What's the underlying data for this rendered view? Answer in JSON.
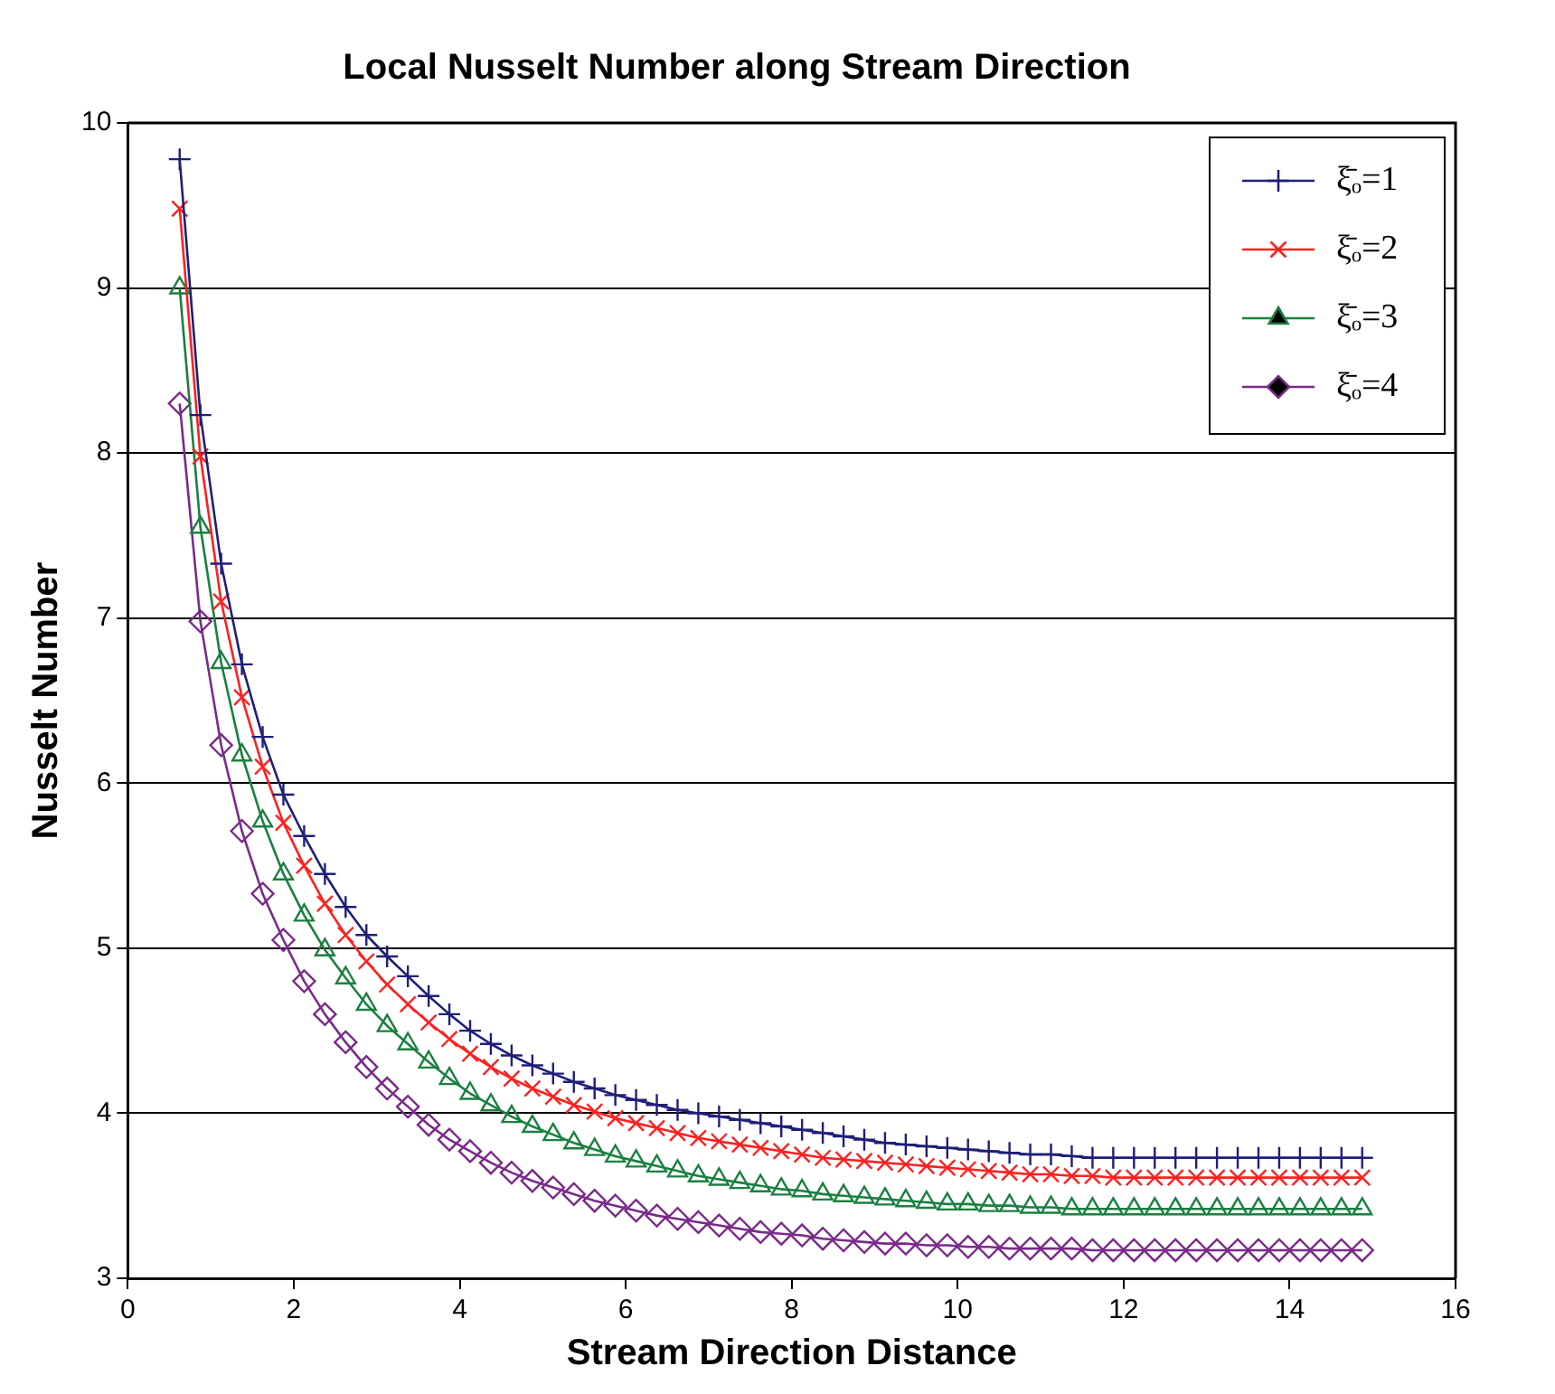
{
  "chart_data": {
    "type": "line",
    "title": "Local Nusselt Number along Stream Direction",
    "xlabel": "Stream Direction Distance",
    "ylabel": "Nusselt Number",
    "x": [
      0.625,
      0.875,
      1.125,
      1.375,
      1.625,
      1.875,
      2.125,
      2.375,
      2.625,
      2.875,
      3.125,
      3.375,
      3.625,
      3.875,
      4.125,
      4.375,
      4.625,
      4.875,
      5.125,
      5.375,
      5.625,
      5.875,
      6.125,
      6.375,
      6.625,
      6.875,
      7.125,
      7.375,
      7.625,
      7.875,
      8.125,
      8.375,
      8.625,
      8.875,
      9.125,
      9.375,
      9.625,
      9.875,
      10.125,
      10.375,
      10.625,
      10.875,
      11.125,
      11.375,
      11.625,
      11.875,
      12.125,
      12.375,
      12.625,
      12.875,
      13.125,
      13.375,
      13.625,
      13.875,
      14.125,
      14.375,
      14.625,
      14.875
    ],
    "series": [
      {
        "name": "ξ̄ₒ=1",
        "color": "#1f1f7a",
        "marker": "plus",
        "values": [
          9.78,
          8.23,
          7.33,
          6.72,
          6.28,
          5.93,
          5.68,
          5.45,
          5.25,
          5.08,
          4.95,
          4.83,
          4.71,
          4.6,
          4.5,
          4.42,
          4.35,
          4.29,
          4.24,
          4.19,
          4.15,
          4.11,
          4.08,
          4.05,
          4.02,
          4.0,
          3.98,
          3.96,
          3.94,
          3.92,
          3.9,
          3.88,
          3.86,
          3.84,
          3.82,
          3.81,
          3.8,
          3.79,
          3.78,
          3.77,
          3.76,
          3.75,
          3.75,
          3.74,
          3.73,
          3.73,
          3.73,
          3.73,
          3.73,
          3.73,
          3.73,
          3.73,
          3.73,
          3.73,
          3.73,
          3.73,
          3.73,
          3.73
        ]
      },
      {
        "name": "ξ̄ₒ=2",
        "color": "#ff2020",
        "marker": "cross",
        "values": [
          9.48,
          7.98,
          7.1,
          6.52,
          6.1,
          5.76,
          5.5,
          5.27,
          5.08,
          4.92,
          4.78,
          4.66,
          4.55,
          4.45,
          4.36,
          4.28,
          4.21,
          4.15,
          4.1,
          4.05,
          4.01,
          3.97,
          3.94,
          3.91,
          3.88,
          3.85,
          3.83,
          3.81,
          3.79,
          3.77,
          3.75,
          3.73,
          3.72,
          3.71,
          3.7,
          3.69,
          3.68,
          3.67,
          3.66,
          3.65,
          3.64,
          3.63,
          3.63,
          3.62,
          3.62,
          3.61,
          3.61,
          3.61,
          3.61,
          3.61,
          3.61,
          3.61,
          3.61,
          3.61,
          3.61,
          3.61,
          3.61,
          3.61
        ]
      },
      {
        "name": "ξ̄ₒ=3",
        "color": "#1a8040",
        "marker": "triangle",
        "values": [
          9.0,
          7.55,
          6.73,
          6.17,
          5.77,
          5.45,
          5.2,
          4.99,
          4.82,
          4.66,
          4.53,
          4.42,
          4.31,
          4.21,
          4.12,
          4.05,
          3.98,
          3.92,
          3.87,
          3.82,
          3.78,
          3.74,
          3.71,
          3.68,
          3.65,
          3.62,
          3.6,
          3.58,
          3.56,
          3.54,
          3.53,
          3.51,
          3.5,
          3.49,
          3.48,
          3.47,
          3.46,
          3.45,
          3.45,
          3.44,
          3.44,
          3.43,
          3.43,
          3.42,
          3.42,
          3.42,
          3.42,
          3.42,
          3.42,
          3.42,
          3.42,
          3.42,
          3.42,
          3.42,
          3.42,
          3.42,
          3.42,
          3.42
        ]
      },
      {
        "name": "ξ̄ₒ=4",
        "color": "#7a2a8a",
        "marker": "diamond",
        "values": [
          8.3,
          6.98,
          6.23,
          5.71,
          5.33,
          5.05,
          4.8,
          4.6,
          4.43,
          4.28,
          4.15,
          4.04,
          3.93,
          3.84,
          3.77,
          3.7,
          3.64,
          3.59,
          3.55,
          3.51,
          3.47,
          3.44,
          3.41,
          3.38,
          3.36,
          3.34,
          3.32,
          3.3,
          3.28,
          3.27,
          3.26,
          3.24,
          3.23,
          3.22,
          3.21,
          3.21,
          3.2,
          3.2,
          3.19,
          3.19,
          3.18,
          3.18,
          3.18,
          3.18,
          3.17,
          3.17,
          3.17,
          3.17,
          3.17,
          3.17,
          3.17,
          3.17,
          3.17,
          3.17,
          3.17,
          3.17,
          3.17,
          3.17
        ]
      }
    ],
    "xlim": [
      0,
      16
    ],
    "xticks": [
      0,
      2,
      4,
      6,
      8,
      10,
      12,
      14,
      16
    ],
    "ylim": [
      3,
      10
    ],
    "yticks": [
      3,
      4,
      5,
      6,
      7,
      8,
      9,
      10
    ],
    "grid": "y",
    "legend": "top right",
    "line_style": "solid"
  }
}
